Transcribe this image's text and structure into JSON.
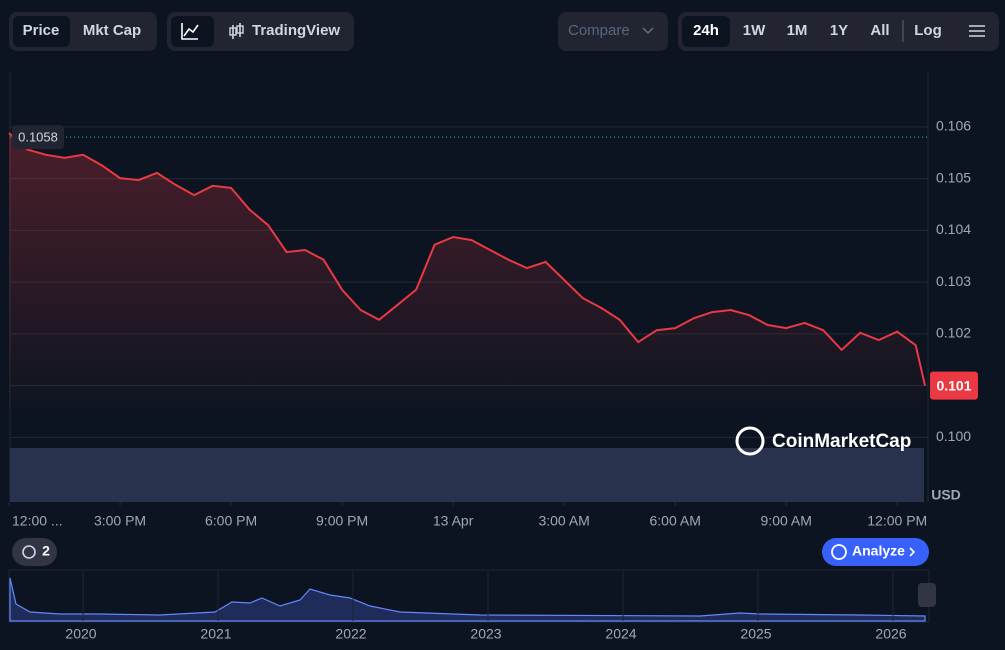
{
  "toolbar": {
    "price": "Price",
    "mkt_cap": "Mkt Cap",
    "tradingview": "TradingView",
    "compare": "Compare",
    "ranges": [
      "24h",
      "1W",
      "1M",
      "1Y",
      "All"
    ],
    "log": "Log"
  },
  "chart_data": {
    "type": "line",
    "color": "#ea3943",
    "x": [
      0,
      0.5,
      1,
      1.5,
      2,
      2.5,
      3,
      3.5,
      4,
      4.5,
      5,
      5.5,
      6,
      6.5,
      7,
      7.5,
      8,
      8.5,
      9,
      9.5,
      10,
      10.5,
      11,
      11.5,
      12,
      12.5,
      13,
      13.5,
      14,
      14.5,
      15,
      15.5,
      16,
      16.5,
      17,
      17.5,
      18,
      18.5,
      19,
      19.5,
      20,
      20.5,
      21,
      21.5,
      22,
      22.5,
      23,
      23.5,
      24,
      24.5,
      24.75
    ],
    "values": [
      0.10588,
      0.10556,
      0.10546,
      0.1054,
      0.10546,
      0.10526,
      0.10501,
      0.10497,
      0.10511,
      0.10488,
      0.10468,
      0.10486,
      0.10482,
      0.1044,
      0.1041,
      0.10358,
      0.10362,
      0.10343,
      0.10285,
      0.10246,
      0.10227,
      0.10256,
      0.10285,
      0.10372,
      0.10387,
      0.10381,
      0.10362,
      0.10343,
      0.10327,
      0.10339,
      0.10304,
      0.10269,
      0.1025,
      0.10227,
      0.10184,
      0.10207,
      0.10211,
      0.1023,
      0.10242,
      0.10246,
      0.10236,
      0.10217,
      0.10211,
      0.10221,
      0.10207,
      0.10169,
      0.10202,
      0.10188,
      0.10204,
      0.10178,
      0.101
    ],
    "xlim": [
      0,
      24.75
    ],
    "xticks": [
      {
        "value": 0,
        "label": "12:00 ..."
      },
      {
        "value": 3,
        "label": "3:00 PM"
      },
      {
        "value": 6,
        "label": "6:00 PM"
      },
      {
        "value": 9,
        "label": "9:00 PM"
      },
      {
        "value": 12,
        "label": "13 Apr"
      },
      {
        "value": 15,
        "label": "3:00 AM"
      },
      {
        "value": 18,
        "label": "6:00 AM"
      },
      {
        "value": 21,
        "label": "9:00 AM"
      },
      {
        "value": 24,
        "label": "12:00 PM"
      }
    ],
    "ylim": [
      0.09875,
      0.10704
    ],
    "yticks": [
      {
        "value": 0.1,
        "label": "0.100"
      },
      0.101,
      0.102,
      0.103,
      0.104,
      0.105,
      0.106
    ],
    "y_unit": "USD",
    "start_price": 0.1058,
    "current_price": 0.101,
    "grid": true
  },
  "watermark": "CoinMarketCap",
  "history_count": "2",
  "analyze": "Analyze",
  "overview_years": [
    "2020",
    "2021",
    "2022",
    "2023",
    "2024",
    "2025",
    "2026"
  ]
}
